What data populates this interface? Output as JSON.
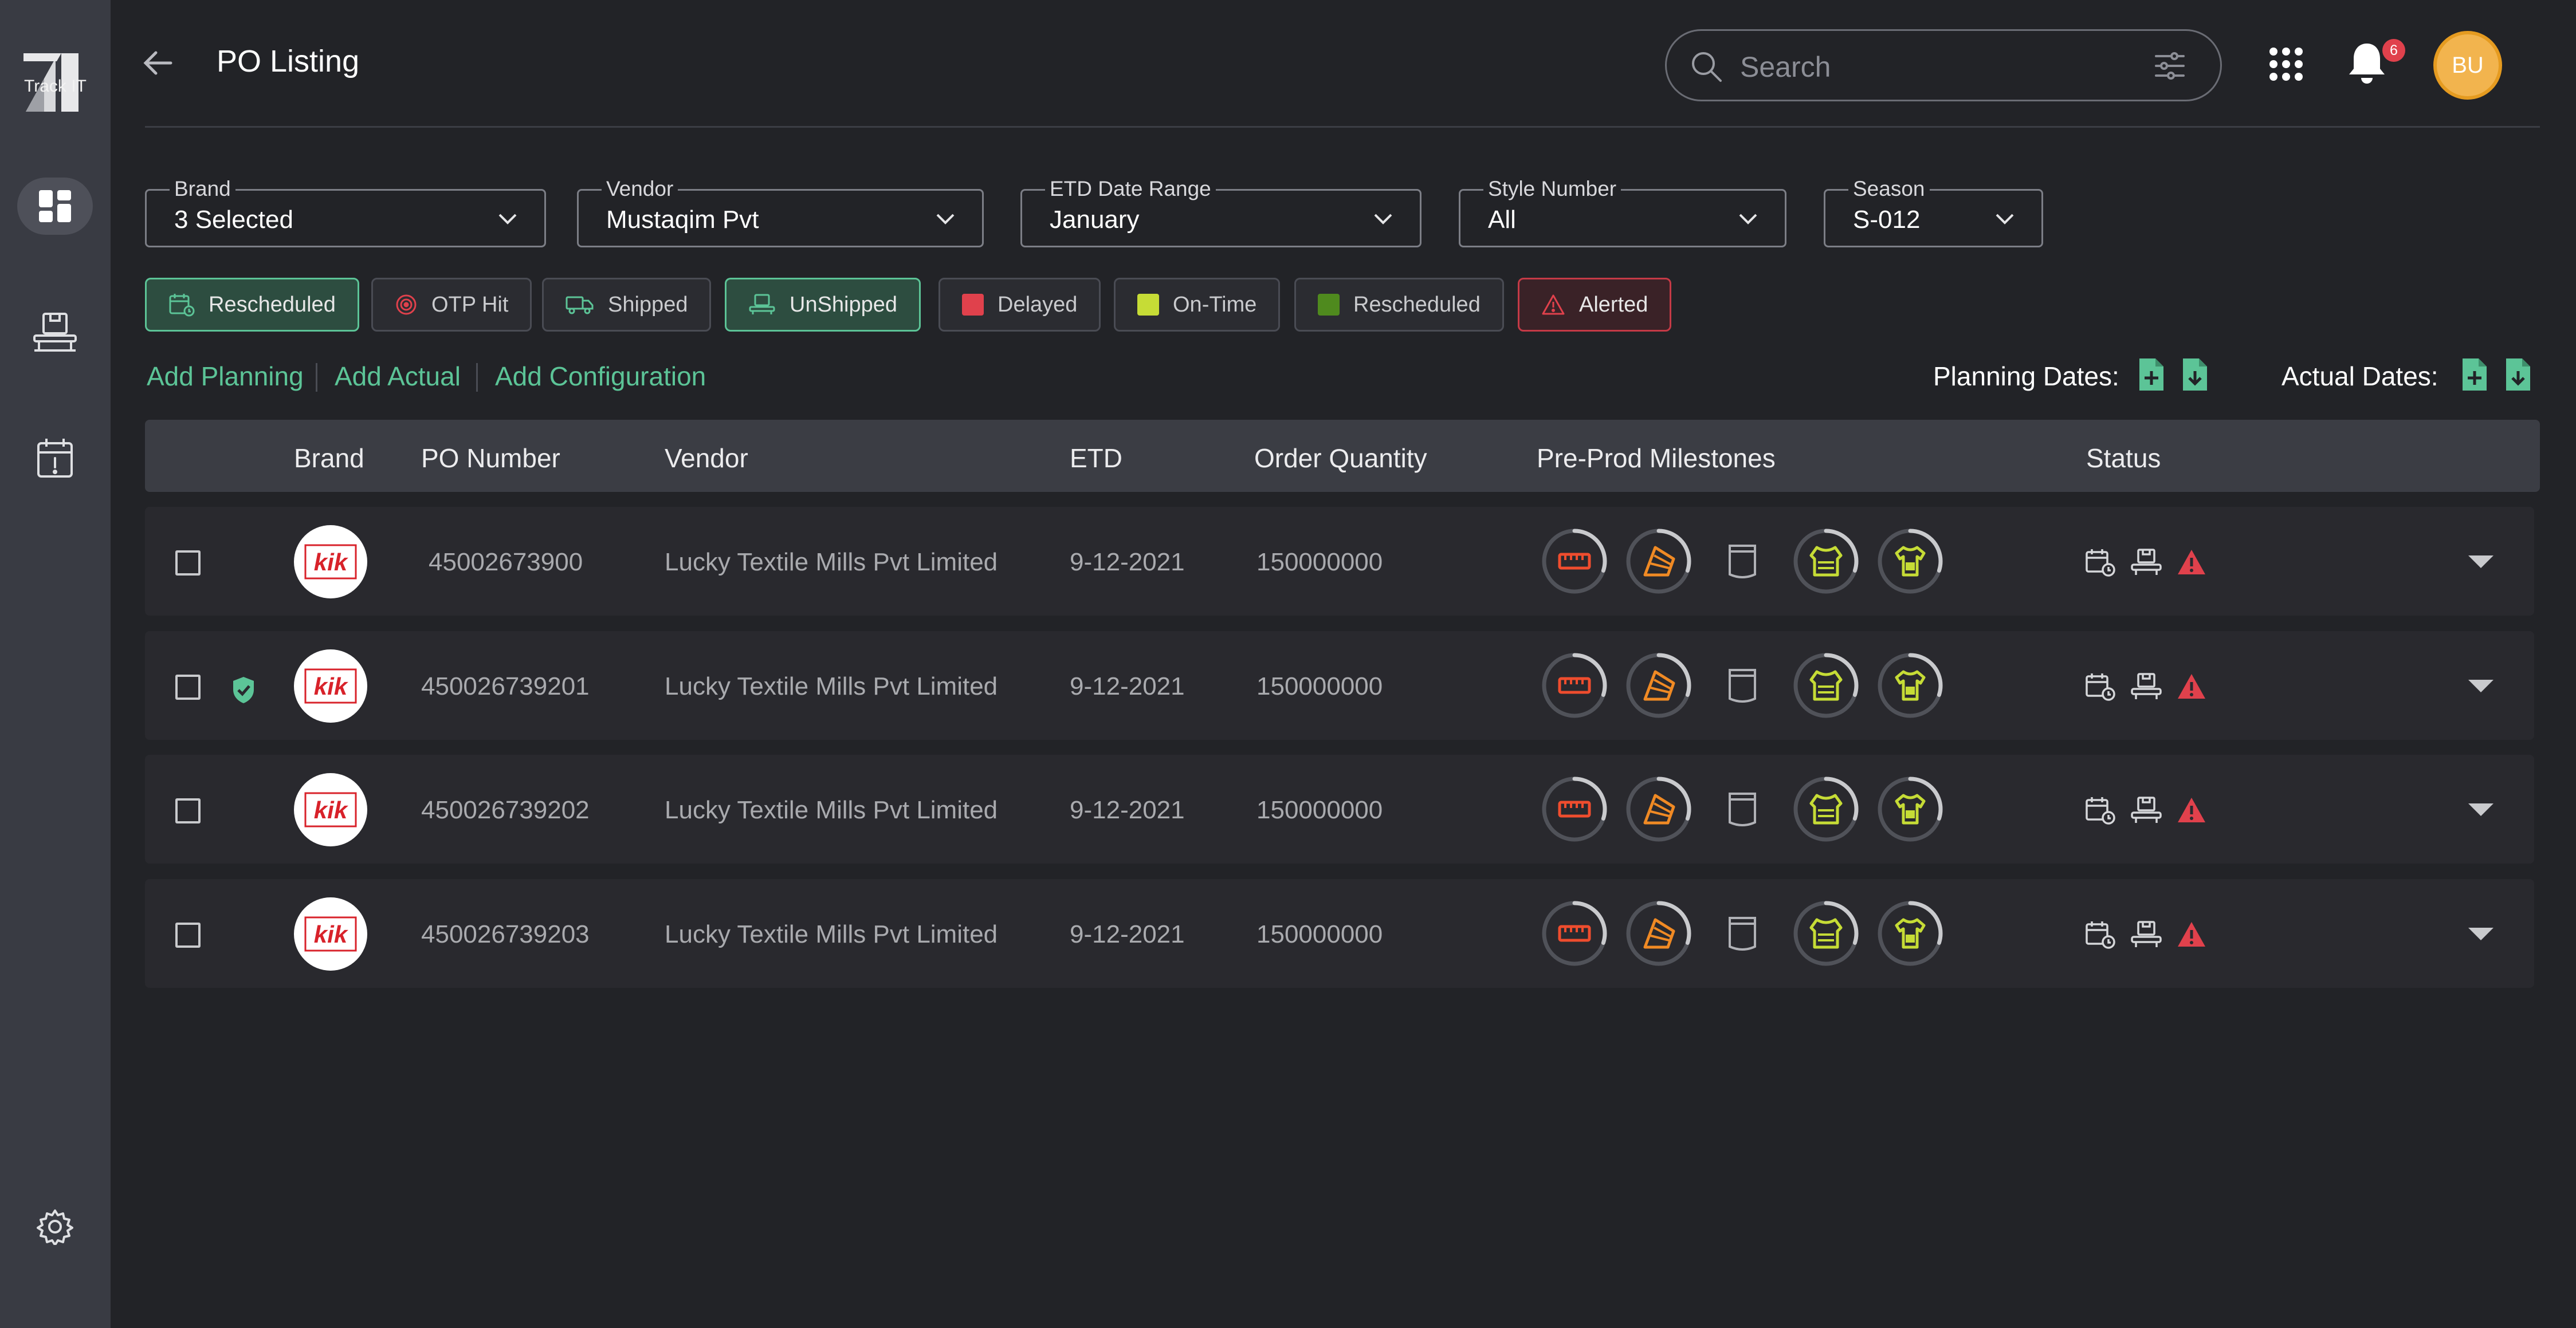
{
  "app": {
    "name": "Track IT"
  },
  "header": {
    "title": "PO Listing",
    "search_placeholder": "Search",
    "notification_count": "6",
    "avatar_initials": "BU"
  },
  "filters": [
    {
      "label": "Brand",
      "value": "3 Selected"
    },
    {
      "label": "Vendor",
      "value": "Mustaqim Pvt"
    },
    {
      "label": "ETD Date Range",
      "value": "January"
    },
    {
      "label": "Style Number",
      "value": "All"
    },
    {
      "label": "Season",
      "value": "S-012"
    }
  ],
  "chips": [
    {
      "label": "Rescheduled",
      "icon": "calendar-icon",
      "selected": true
    },
    {
      "label": "OTP Hit",
      "icon": "target-icon",
      "selected": false
    },
    {
      "label": "Shipped",
      "icon": "truck-icon",
      "selected": false
    },
    {
      "label": "UnShipped",
      "icon": "conveyor-icon",
      "selected": true
    },
    {
      "label": "Delayed",
      "color": "#e0414c",
      "selected": false
    },
    {
      "label": "On-Time",
      "color": "#c6dc36",
      "selected": false
    },
    {
      "label": "Rescheduled",
      "color": "#4f8a1e",
      "selected": false
    },
    {
      "label": "Alerted",
      "icon": "warning-icon",
      "selected": true
    }
  ],
  "actions": {
    "add_planning": "Add Planning",
    "add_actual": "Add Actual",
    "add_configuration": "Add Configuration",
    "planning_dates": "Planning Dates:",
    "actual_dates": "Actual Dates:"
  },
  "table": {
    "columns": [
      "Brand",
      "PO Number",
      "Vendor",
      "ETD",
      "Order Quantity",
      "Pre-Prod Milestones",
      "Status"
    ],
    "rows": [
      {
        "brand": "kik",
        "po_number": "45002673900",
        "vendor": "Lucky Textile Mills Pvt Limited",
        "etd": "9-12-2021",
        "order_quantity": "150000000",
        "verified": false
      },
      {
        "brand": "kik",
        "po_number": "450026739201",
        "vendor": "Lucky Textile Mills Pvt Limited",
        "etd": "9-12-2021",
        "order_quantity": "150000000",
        "verified": true
      },
      {
        "brand": "kik",
        "po_number": "450026739202",
        "vendor": "Lucky Textile Mills Pvt Limited",
        "etd": "9-12-2021",
        "order_quantity": "150000000",
        "verified": false
      },
      {
        "brand": "kik",
        "po_number": "450026739203",
        "vendor": "Lucky Textile Mills Pvt Limited",
        "etd": "9-12-2021",
        "order_quantity": "150000000",
        "verified": false
      }
    ]
  },
  "colors": {
    "accent": "#5cc497",
    "alert": "#e0414c",
    "background": "#222327",
    "sidebar": "#393b43"
  }
}
